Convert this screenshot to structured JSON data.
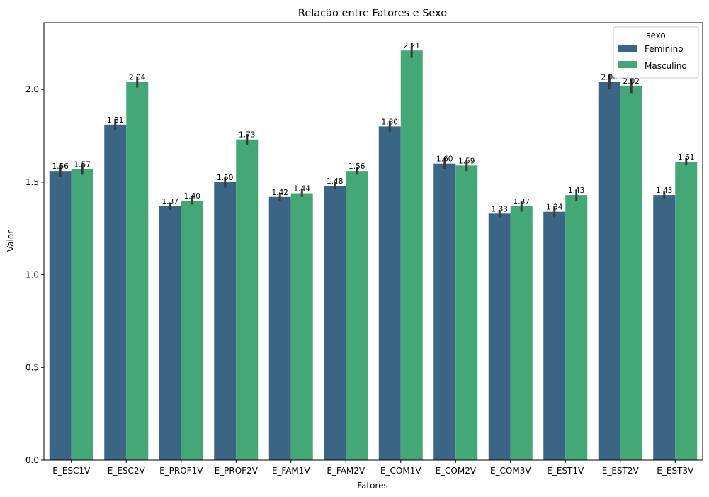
{
  "chart_data": {
    "type": "bar",
    "title": "Relação entre Fatores e Sexo",
    "xlabel": "Fatores",
    "ylabel": "Valor",
    "ylim": [
      0,
      2.36
    ],
    "yticks": [
      "0.0",
      "0.5",
      "1.0",
      "1.5",
      "2.0"
    ],
    "categories": [
      "E_ESC1V",
      "E_ESC2V",
      "E_PROF1V",
      "E_PROF2V",
      "E_FAM1V",
      "E_FAM2V",
      "E_COM1V",
      "E_COM2V",
      "E_COM3V",
      "E_EST1V",
      "E_EST2V",
      "E_EST3V"
    ],
    "legend": {
      "title": "sexo",
      "position": "top-right"
    },
    "series": [
      {
        "name": "Feminino",
        "color": "#3b6584",
        "values": [
          1.56,
          1.81,
          1.37,
          1.5,
          1.42,
          1.48,
          1.8,
          1.6,
          1.33,
          1.34,
          2.04,
          1.43
        ],
        "labels": [
          "1.56",
          "1.81",
          "1.37",
          "1.50",
          "1.42",
          "1.48",
          "1.80",
          "1.60",
          "1.33",
          "1.34",
          "2.04",
          "1.43"
        ],
        "err": [
          0.03,
          0.03,
          0.02,
          0.03,
          0.02,
          0.02,
          0.03,
          0.03,
          0.02,
          0.03,
          0.04,
          0.02
        ]
      },
      {
        "name": "Masculino",
        "color": "#44a876",
        "values": [
          1.57,
          2.04,
          1.4,
          1.73,
          1.44,
          1.56,
          2.21,
          1.59,
          1.37,
          1.43,
          2.02,
          1.61
        ],
        "labels": [
          "1.57",
          "2.04",
          "1.40",
          "1.73",
          "1.44",
          "1.56",
          "2.21",
          "1.59",
          "1.37",
          "1.43",
          "2.02",
          "1.61"
        ],
        "err": [
          0.03,
          0.03,
          0.02,
          0.03,
          0.02,
          0.02,
          0.04,
          0.03,
          0.03,
          0.03,
          0.04,
          0.02
        ]
      }
    ]
  }
}
